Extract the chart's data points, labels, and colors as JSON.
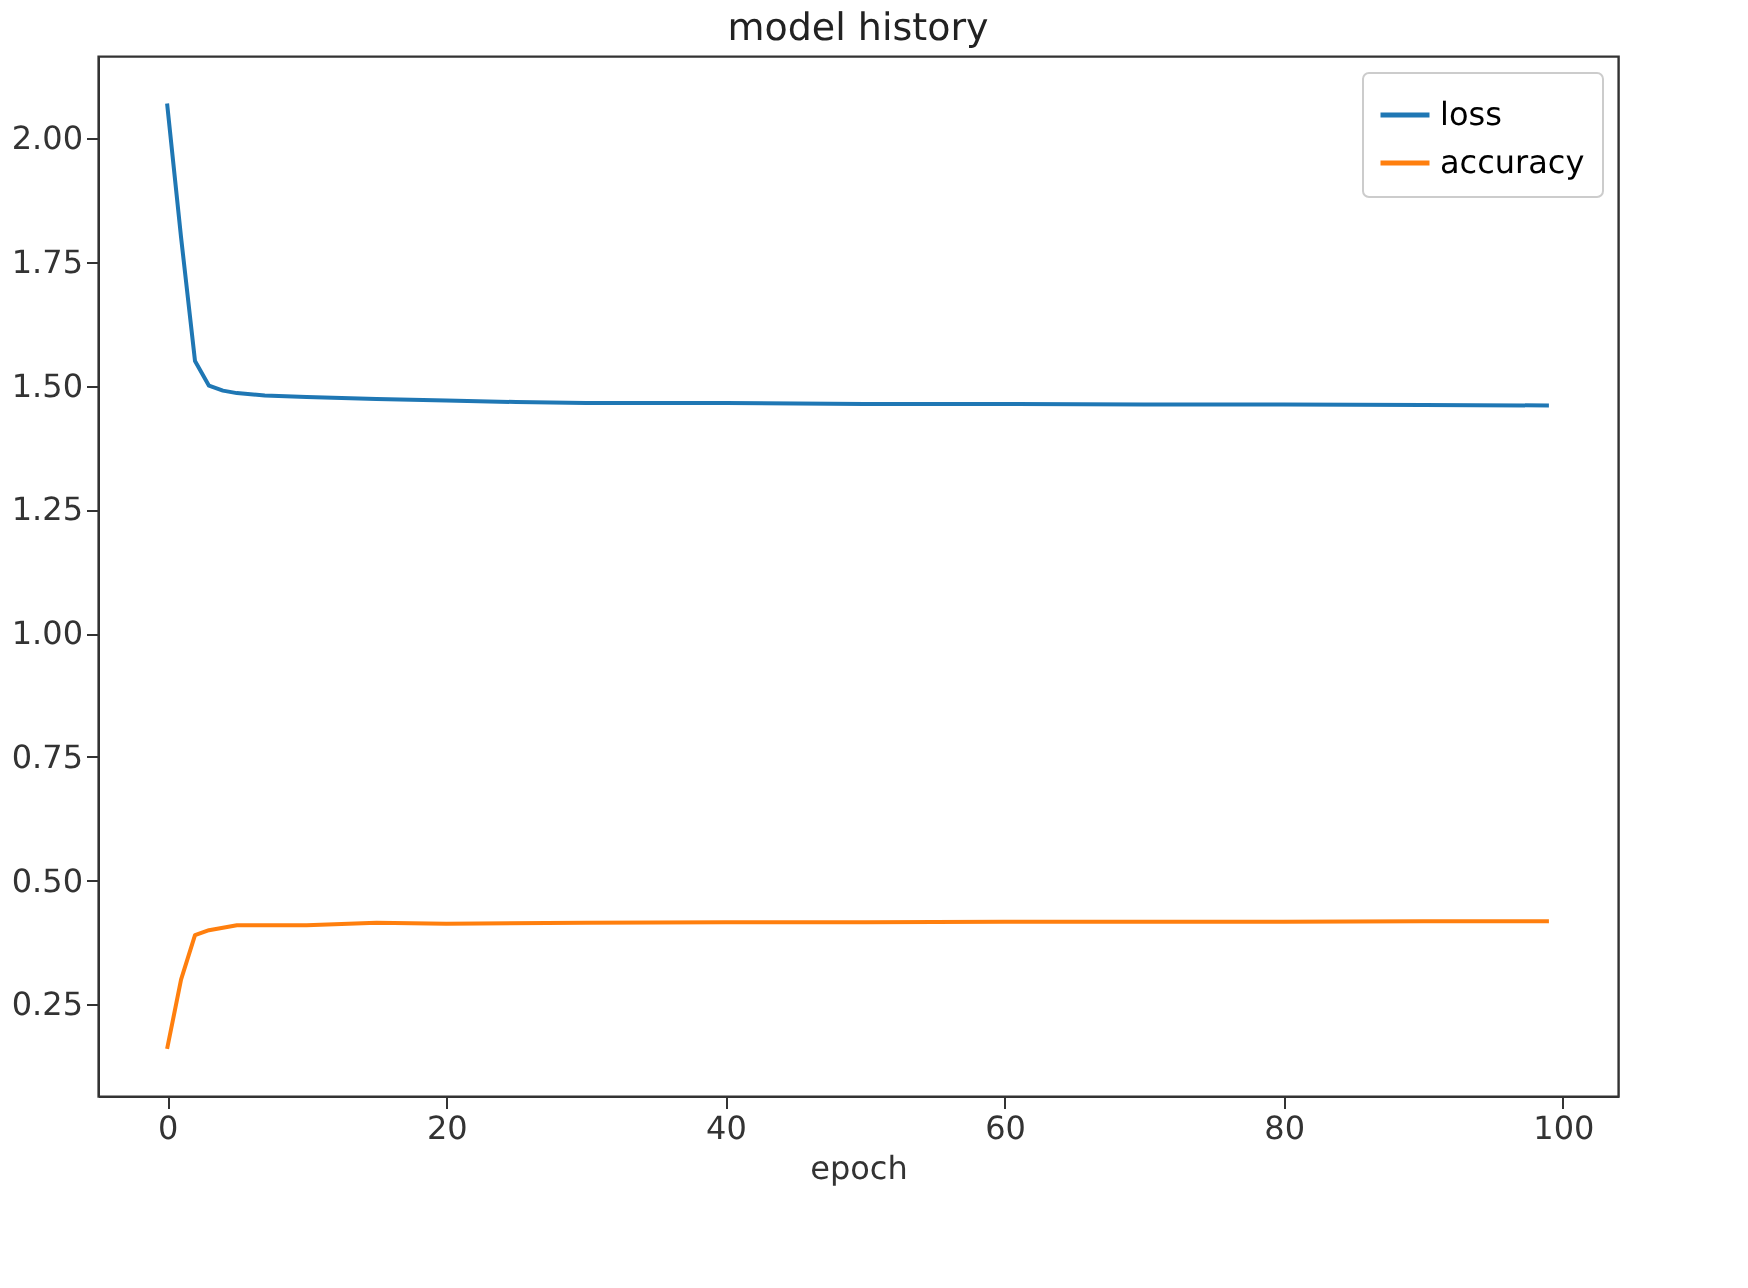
{
  "chart_data": {
    "type": "line",
    "title": "model history",
    "xlabel": "epoch",
    "xlim": [
      -4.95,
      103.95
    ],
    "xticks": [
      0,
      20,
      40,
      60,
      80,
      100
    ],
    "ylim": [
      0.065,
      2.166
    ],
    "yticks": [
      {
        "value": 0.25,
        "label": "0.25"
      },
      {
        "value": 0.5,
        "label": "0.50"
      },
      {
        "value": 0.75,
        "label": "0.75"
      },
      {
        "value": 1.0,
        "label": "1.00"
      },
      {
        "value": 1.25,
        "label": "1.25"
      },
      {
        "value": 1.5,
        "label": "1.50"
      },
      {
        "value": 1.75,
        "label": "1.75"
      },
      {
        "value": 2.0,
        "label": "2.00"
      }
    ],
    "grid": false,
    "legend": "top right",
    "series": [
      {
        "name": "loss",
        "color": "#1f77b4",
        "x": [
          0,
          1,
          2,
          3,
          4,
          5,
          7,
          10,
          15,
          20,
          25,
          30,
          40,
          50,
          60,
          70,
          80,
          90,
          99
        ],
        "values": [
          2.07,
          1.8,
          1.55,
          1.5,
          1.49,
          1.485,
          1.48,
          1.477,
          1.473,
          1.47,
          1.467,
          1.465,
          1.465,
          1.463,
          1.463,
          1.462,
          1.462,
          1.461,
          1.46
        ]
      },
      {
        "name": "accuracy",
        "color": "#ff7f0e",
        "x": [
          0,
          1,
          2,
          3,
          5,
          10,
          15,
          20,
          30,
          40,
          50,
          60,
          70,
          80,
          90,
          99
        ],
        "values": [
          0.16,
          0.3,
          0.39,
          0.4,
          0.41,
          0.41,
          0.415,
          0.413,
          0.415,
          0.416,
          0.416,
          0.417,
          0.417,
          0.417,
          0.418,
          0.418
        ]
      }
    ]
  }
}
